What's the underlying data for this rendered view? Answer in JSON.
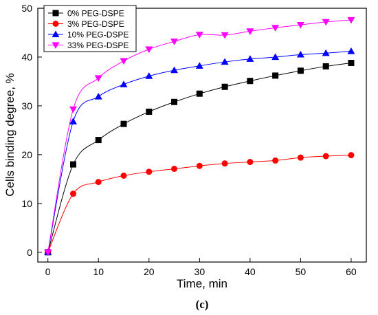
{
  "panel_label": "(c)",
  "chart_data": {
    "type": "line",
    "xlabel": "Time, min",
    "ylabel": "Cells binding degree, %",
    "xlim": [
      -2,
      63
    ],
    "ylim": [
      -2,
      50
    ],
    "xticks": [
      0,
      10,
      20,
      30,
      40,
      50,
      60
    ],
    "yticks": [
      0,
      10,
      20,
      30,
      40,
      50
    ],
    "grid": false,
    "legend_position": "top-left",
    "x": [
      0,
      5,
      10,
      15,
      20,
      25,
      30,
      35,
      40,
      45,
      50,
      55,
      60
    ],
    "series": [
      {
        "name": "0% PEG-DSPE",
        "color": "#000000",
        "marker": "square",
        "values": [
          0,
          18.0,
          23.0,
          26.3,
          28.8,
          30.8,
          32.5,
          33.9,
          35.1,
          36.2,
          37.2,
          38.1,
          38.8
        ]
      },
      {
        "name": "3% PEG-DSPE",
        "color": "#ff0000",
        "marker": "circle",
        "values": [
          0,
          12.0,
          14.4,
          15.7,
          16.5,
          17.1,
          17.7,
          18.2,
          18.5,
          18.8,
          19.4,
          19.7,
          19.9
        ]
      },
      {
        "name": "10% PEG-DSPE",
        "color": "#0000ff",
        "marker": "triangle-up",
        "values": [
          0,
          26.8,
          31.9,
          34.4,
          36.1,
          37.3,
          38.2,
          39.0,
          39.6,
          40.0,
          40.5,
          40.8,
          41.2
        ]
      },
      {
        "name": "33% PEG-DSPE",
        "color": "#ff00ff",
        "marker": "triangle-down",
        "values": [
          0,
          29.3,
          35.7,
          39.2,
          41.6,
          43.2,
          44.6,
          44.5,
          45.3,
          46.0,
          46.6,
          47.2,
          47.6
        ]
      }
    ]
  }
}
